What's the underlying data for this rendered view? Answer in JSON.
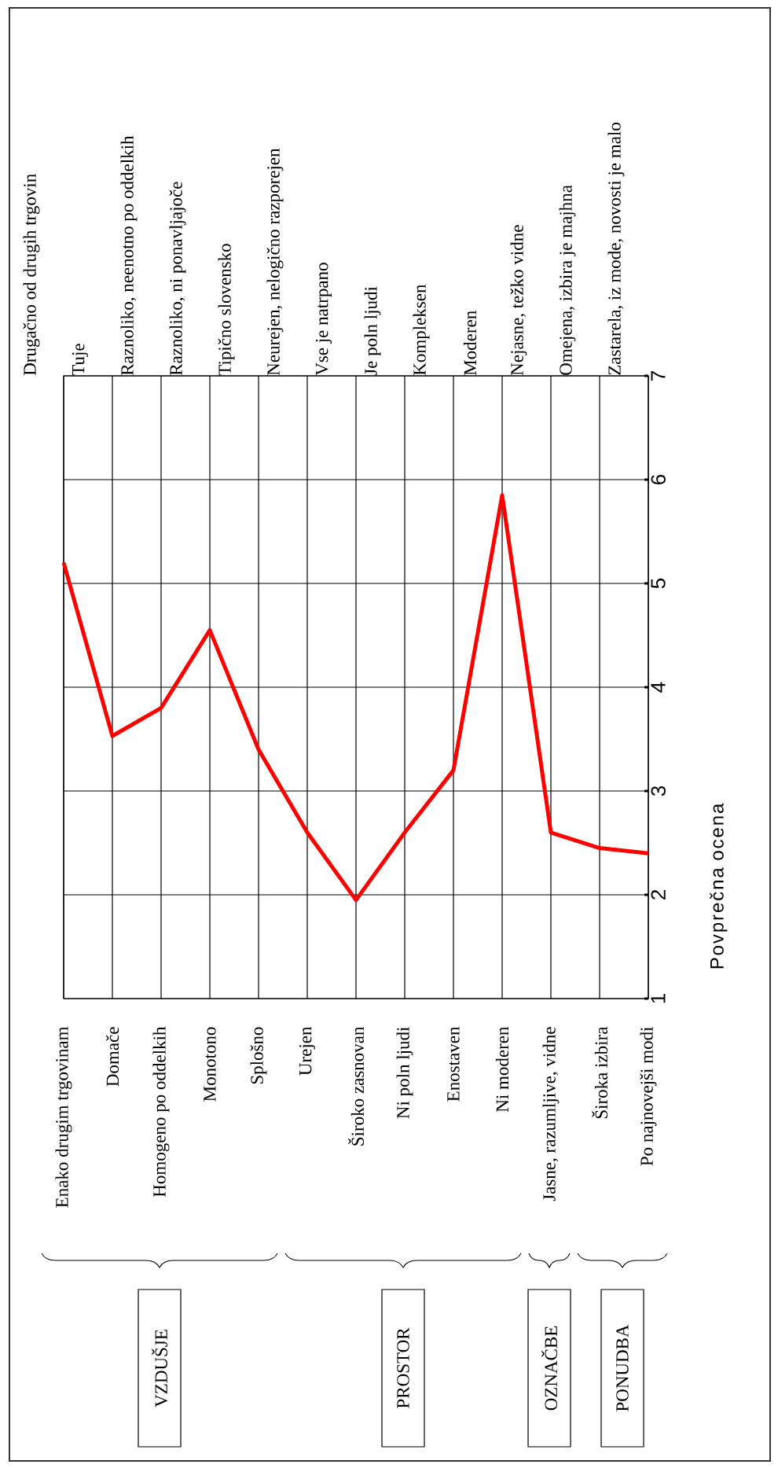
{
  "chart_data": {
    "type": "line",
    "ylabel": "Povprečna ocena",
    "categories": [
      "Enako drugim trgovinam",
      "Domače",
      "Homogeno po oddelkih",
      "Monotono",
      "Splošno",
      "Urejen",
      "Široko zasnovan",
      "Ni poln ljudi",
      "Enostaven",
      "Ni moderen",
      "Jasne, razumljive, vidne",
      "Široka izbira",
      "Po najnovejši modi"
    ],
    "series": [
      {
        "color": "#ff0000",
        "values": [
          5.2,
          3.53,
          3.8,
          4.55,
          3.4,
          2.6,
          1.95,
          2.6,
          3.2,
          5.85,
          2.6,
          2.45,
          2.4
        ]
      }
    ],
    "ylim": [
      1,
      7
    ],
    "yticks": [
      1,
      2,
      3,
      4,
      5,
      6,
      7
    ],
    "grid": true,
    "annotations": [
      "Drugačno od drugih trgovin",
      "Tuje",
      "Raznoliko, neenotno po oddelkih",
      "Raznoliko, ni ponavljajoče",
      "Tipično slovensko",
      "Neurejen, nelogično razporejen",
      "Vse je natrpano",
      "Je poln ljudi",
      "Kompleksen",
      "Moderen",
      "Nejasne, težko vidne",
      "Omejena, izbira je majhna",
      "Zastarela, iz mode, novosti je malo",
      "VZDUŠJE",
      "PROSTOR",
      "OZNAČBE",
      "PONUDBA"
    ]
  }
}
